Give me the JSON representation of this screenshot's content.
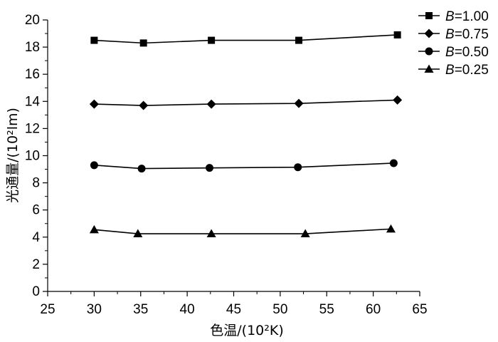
{
  "chart_data": {
    "type": "line",
    "xlabel": "色温/(10²K)",
    "ylabel": "光通量/(10²lm)",
    "xlim": [
      25,
      65
    ],
    "ylim": [
      0,
      20
    ],
    "xticks": [
      "25",
      "30",
      "35",
      "40",
      "45",
      "50",
      "55",
      "60",
      "65"
    ],
    "yticks": [
      "0",
      "2",
      "4",
      "6",
      "8",
      "10",
      "12",
      "14",
      "16",
      "18",
      "20"
    ],
    "legend_position": "top-right",
    "series": [
      {
        "name": "B=1.00",
        "marker": "square",
        "x": [
          30.0,
          35.3,
          42.6,
          52.0,
          62.6
        ],
        "y": [
          18.5,
          18.3,
          18.5,
          18.5,
          18.9
        ]
      },
      {
        "name": "B=0.75",
        "marker": "diamond",
        "x": [
          30.0,
          35.3,
          42.6,
          52.0,
          62.6
        ],
        "y": [
          13.8,
          13.7,
          13.8,
          13.85,
          14.1
        ]
      },
      {
        "name": "B=0.50",
        "marker": "circle",
        "x": [
          30.0,
          35.1,
          42.4,
          51.9,
          62.2
        ],
        "y": [
          9.3,
          9.05,
          9.1,
          9.15,
          9.45
        ]
      },
      {
        "name": "B=0.25",
        "marker": "triangle",
        "x": [
          30.0,
          34.7,
          42.6,
          52.7,
          61.9
        ],
        "y": [
          4.55,
          4.25,
          4.25,
          4.25,
          4.6
        ]
      }
    ]
  }
}
